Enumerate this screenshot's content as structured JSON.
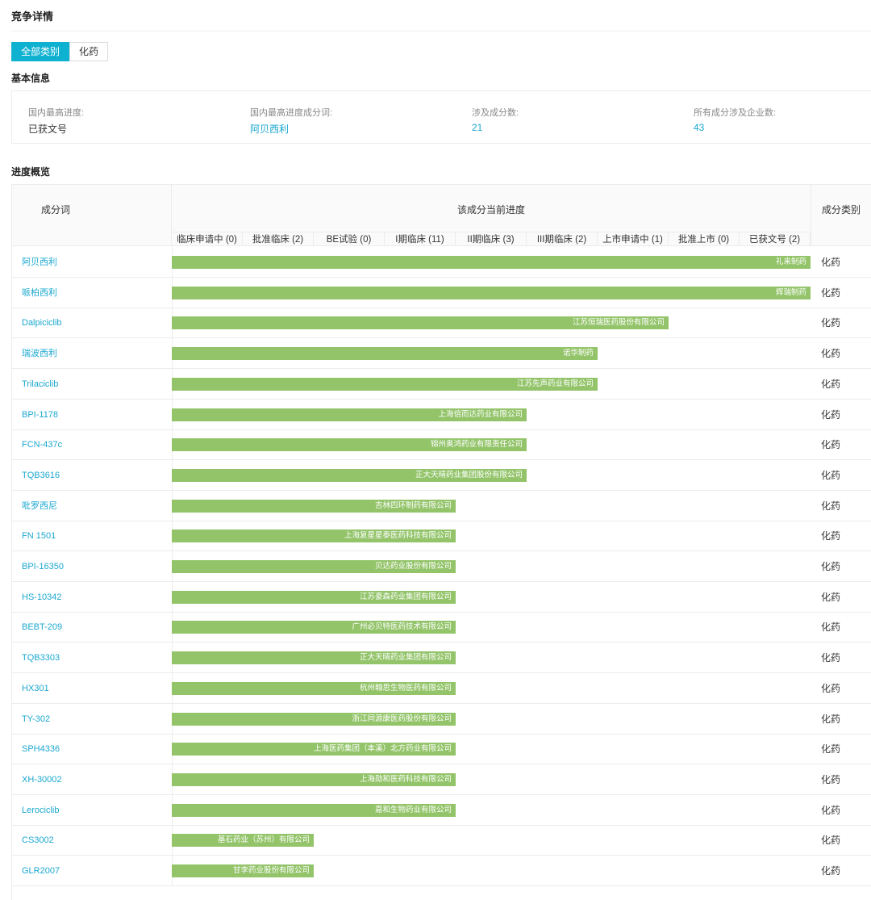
{
  "page_title": "竞争详情",
  "category_tabs": [
    {
      "label": "全部类别",
      "active": true
    },
    {
      "label": "化药",
      "active": false
    }
  ],
  "basic_info": {
    "title": "基本信息",
    "items": [
      {
        "label": "国内最高进度:",
        "value": "已获文号",
        "link": false
      },
      {
        "label": "国内最高进度成分词:",
        "value": "阿贝西利",
        "link": true
      },
      {
        "label": "涉及成分数:",
        "value": "21",
        "link": true
      },
      {
        "label": "所有成分涉及企业数:",
        "value": "43",
        "link": true
      }
    ]
  },
  "progress": {
    "title": "进度概览",
    "col_name": "成分词",
    "col_progress": "该成分当前进度",
    "col_category": "成分类别",
    "stages": [
      "临床申请中 (0)",
      "批准临床 (2)",
      "BE试验 (0)",
      "I期临床 (11)",
      "II期临床 (3)",
      "III期临床 (2)",
      "上市申请中 (1)",
      "批准上市 (0)",
      "已获文号 (2)"
    ],
    "rows": [
      {
        "name": "阿贝西利",
        "company": "礼来制药",
        "stage": 9,
        "category": "化药"
      },
      {
        "name": "哌柏西利",
        "company": "辉瑞制药",
        "stage": 9,
        "category": "化药"
      },
      {
        "name": "Dalpiciclib",
        "company": "江苏恒瑞医药股份有限公司",
        "stage": 7,
        "category": "化药"
      },
      {
        "name": "瑞波西利",
        "company": "诺华制药",
        "stage": 6,
        "category": "化药"
      },
      {
        "name": "Trilaciclib",
        "company": "江苏先声药业有限公司",
        "stage": 6,
        "category": "化药"
      },
      {
        "name": "BPI-1178",
        "company": "上海倍而达药业有限公司",
        "stage": 5,
        "category": "化药"
      },
      {
        "name": "FCN-437c",
        "company": "锦州奥鸿药业有限责任公司",
        "stage": 5,
        "category": "化药"
      },
      {
        "name": "TQB3616",
        "company": "正大天晴药业集团股份有限公司",
        "stage": 5,
        "category": "化药"
      },
      {
        "name": "吡罗西尼",
        "company": "吉林四环制药有限公司",
        "stage": 4,
        "category": "化药"
      },
      {
        "name": "FN 1501",
        "company": "上海复星星泰医药科技有限公司",
        "stage": 4,
        "category": "化药"
      },
      {
        "name": "BPI-16350",
        "company": "贝达药业股份有限公司",
        "stage": 4,
        "category": "化药"
      },
      {
        "name": "HS-10342",
        "company": "江苏豪森药业集团有限公司",
        "stage": 4,
        "category": "化药"
      },
      {
        "name": "BEBT-209",
        "company": "广州必贝特医药技术有限公司",
        "stage": 4,
        "category": "化药"
      },
      {
        "name": "TQB3303",
        "company": "正大天晴药业集团有限公司",
        "stage": 4,
        "category": "化药"
      },
      {
        "name": "HX301",
        "company": "杭州翰思生物医药有限公司",
        "stage": 4,
        "category": "化药"
      },
      {
        "name": "TY-302",
        "company": "浙江同源康医药股份有限公司",
        "stage": 4,
        "category": "化药"
      },
      {
        "name": "SPH4336",
        "company": "上海医药集团（本溪）北方药业有限公司",
        "stage": 4,
        "category": "化药"
      },
      {
        "name": "XH-30002",
        "company": "上海勋和医药科技有限公司",
        "stage": 4,
        "category": "化药"
      },
      {
        "name": "Lerociclib",
        "company": "嘉和生物药业有限公司",
        "stage": 4,
        "category": "化药"
      },
      {
        "name": "CS3002",
        "company": "基石药业（苏州）有限公司",
        "stage": 2,
        "category": "化药"
      },
      {
        "name": "GLR2007",
        "company": "甘李药业股份有限公司",
        "stage": 2,
        "category": "化药"
      }
    ]
  }
}
